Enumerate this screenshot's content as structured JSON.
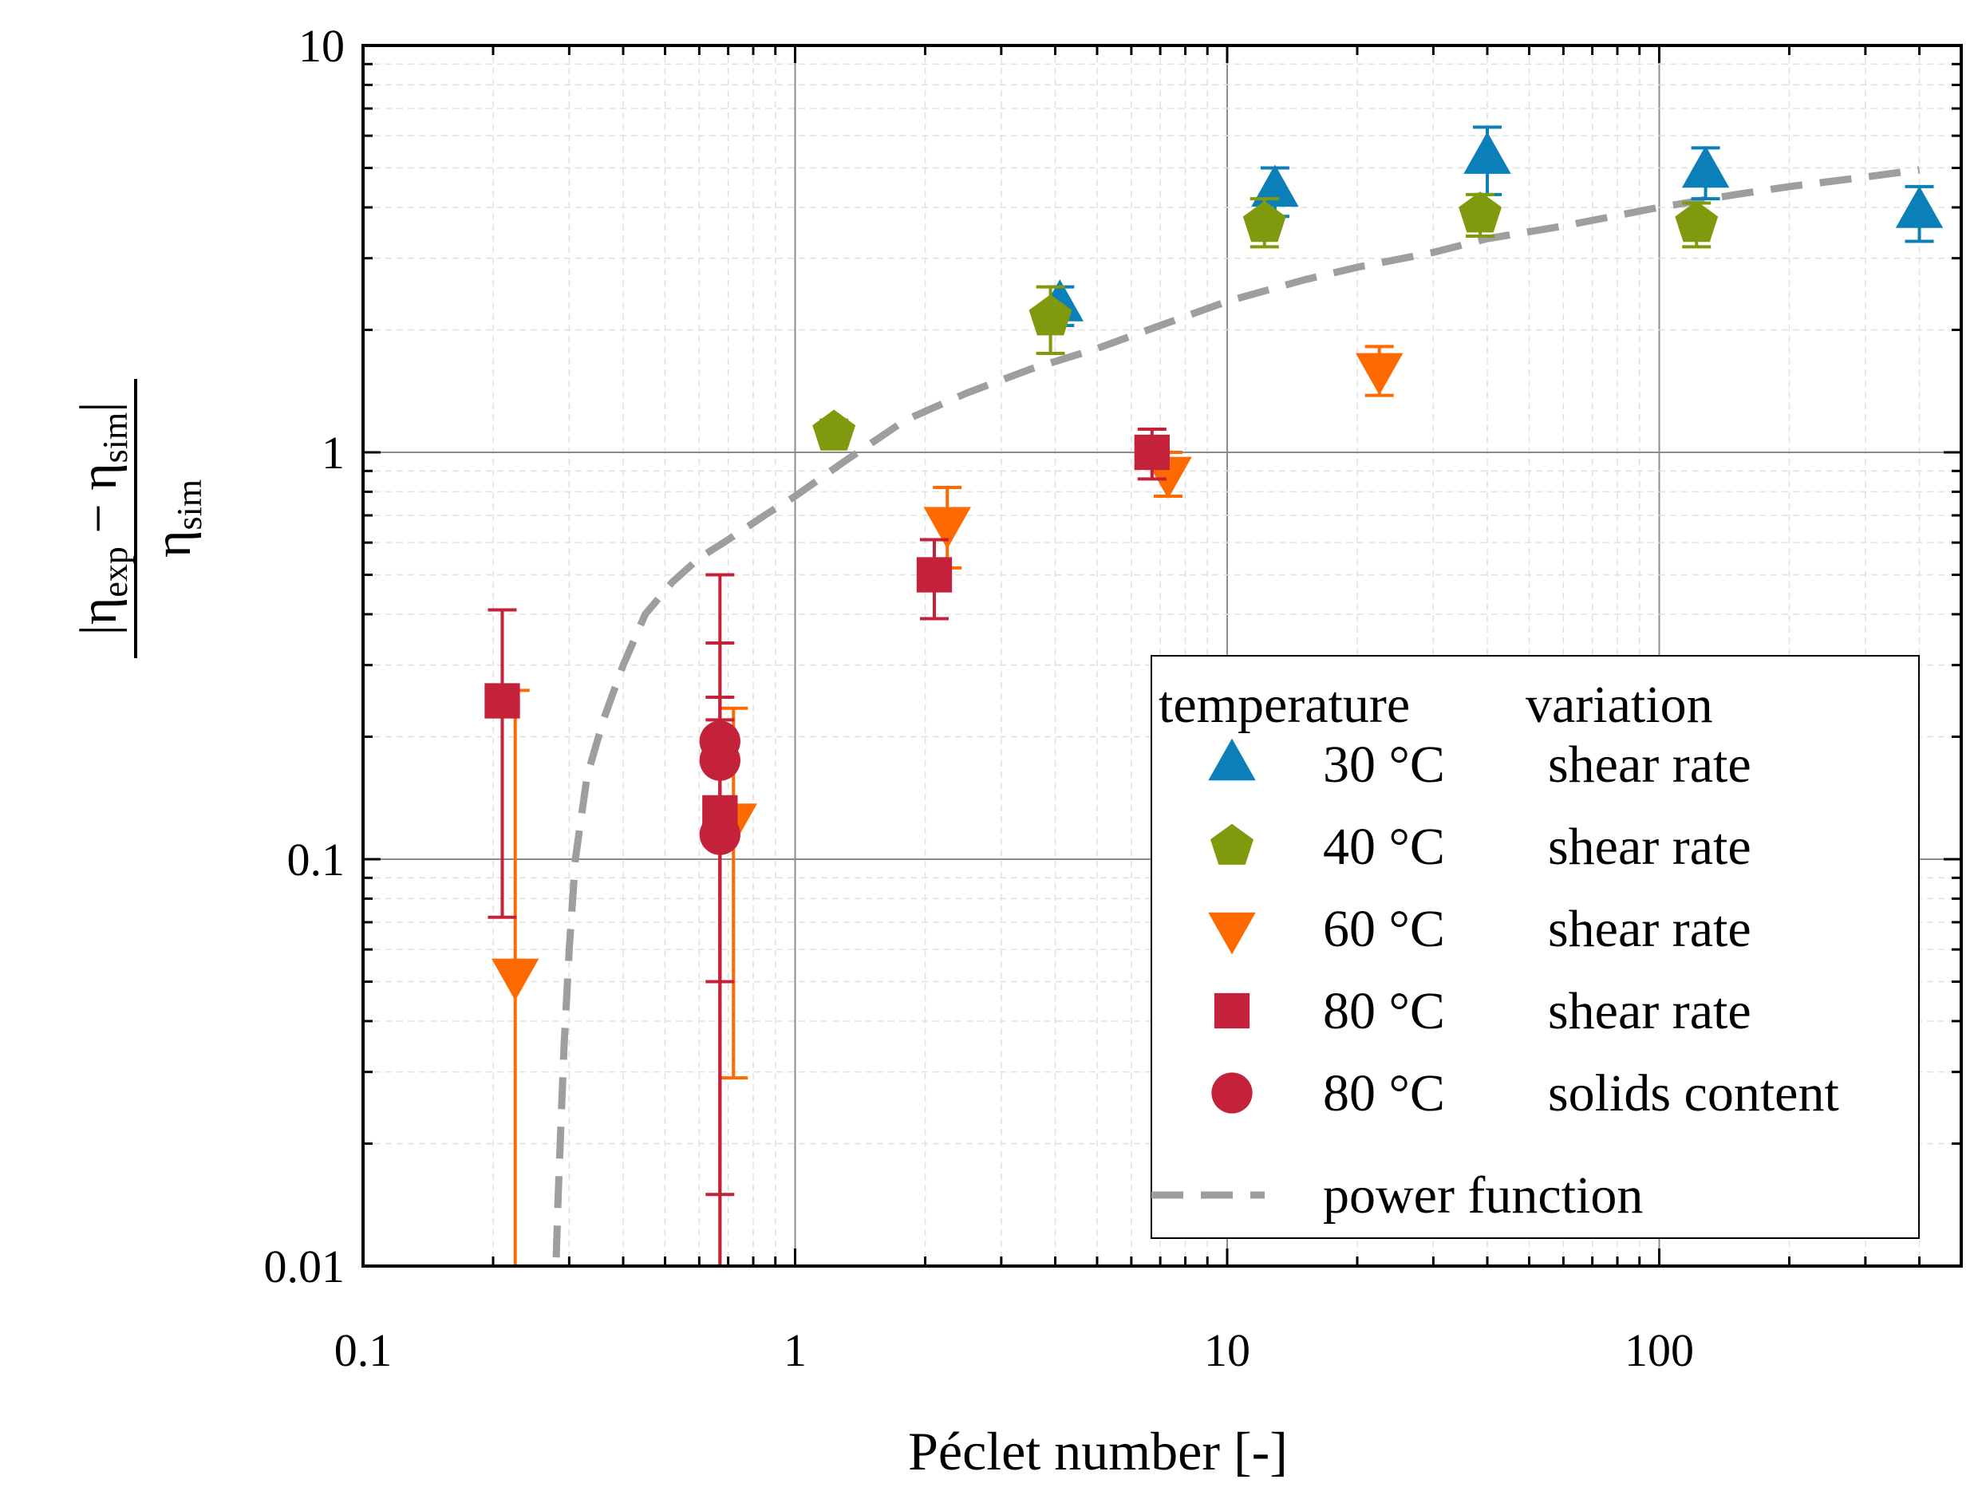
{
  "chart_data": {
    "type": "scatter",
    "xscale": "log",
    "yscale": "log",
    "xlim": [
      0.1,
      500
    ],
    "ylim": [
      0.01,
      10
    ],
    "xlabel": "Péclet number [-]",
    "ylabel": {
      "numerator_open": "|η",
      "numerator_sub1": "exp",
      "numerator_mid": " − η",
      "numerator_sub2": "sim",
      "numerator_close": "|",
      "denominator": "η",
      "denominator_sub": "sim"
    },
    "x_ticks": [
      {
        "value": 0.1,
        "label": "0.1"
      },
      {
        "value": 1,
        "label": "1"
      },
      {
        "value": 10,
        "label": "10"
      },
      {
        "value": 100,
        "label": "100"
      }
    ],
    "y_ticks": [
      {
        "value": 0.01,
        "label": "0.01"
      },
      {
        "value": 0.1,
        "label": "0.1"
      },
      {
        "value": 1,
        "label": "1"
      },
      {
        "value": 10,
        "label": "10"
      }
    ],
    "grid": true,
    "legend": {
      "placement": "bottom-right",
      "header_left": "temperature",
      "header_right": "variation"
    },
    "series": [
      {
        "name": "30 °C",
        "variation": "shear rate",
        "marker": "triangle-up",
        "color": "#0a7fb8",
        "points": [
          {
            "x": 4.1,
            "y": 2.3,
            "lo": 2.05,
            "hi": 2.55
          },
          {
            "x": 12.9,
            "y": 4.4,
            "lo": 3.8,
            "hi": 5.0
          },
          {
            "x": 40,
            "y": 5.3,
            "lo": 4.3,
            "hi": 6.3
          },
          {
            "x": 128,
            "y": 4.9,
            "lo": 4.2,
            "hi": 5.6
          },
          {
            "x": 400,
            "y": 3.9,
            "lo": 3.3,
            "hi": 4.5
          }
        ]
      },
      {
        "name": "40 °C",
        "variation": "shear rate",
        "marker": "pentagon",
        "color": "#7f9a0c",
        "points": [
          {
            "x": 1.23,
            "y": 1.12,
            "lo": 1.05,
            "hi": 1.2
          },
          {
            "x": 3.9,
            "y": 2.15,
            "lo": 1.75,
            "hi": 2.55
          },
          {
            "x": 12.2,
            "y": 3.65,
            "lo": 3.2,
            "hi": 4.2
          },
          {
            "x": 38.5,
            "y": 3.85,
            "lo": 3.4,
            "hi": 4.3
          },
          {
            "x": 122,
            "y": 3.65,
            "lo": 3.2,
            "hi": 4.1
          }
        ]
      },
      {
        "name": "60 °C",
        "variation": "shear rate",
        "marker": "triangle-down",
        "color": "#ff6a00",
        "points": [
          {
            "x": 0.225,
            "y": 0.052,
            "lo": 0.01,
            "hi": 0.26
          },
          {
            "x": 0.72,
            "y": 0.125,
            "lo": 0.029,
            "hi": 0.235
          },
          {
            "x": 2.25,
            "y": 0.67,
            "lo": 0.52,
            "hi": 0.82
          },
          {
            "x": 7.3,
            "y": 0.89,
            "lo": 0.78,
            "hi": 1.0
          },
          {
            "x": 22.5,
            "y": 1.6,
            "lo": 1.38,
            "hi": 1.82
          }
        ]
      },
      {
        "name": "80 °C",
        "variation": "shear rate",
        "marker": "square",
        "color": "#c4213a",
        "points": [
          {
            "x": 0.21,
            "y": 0.245,
            "lo": 0.072,
            "hi": 0.41
          },
          {
            "x": 0.67,
            "y": 0.13,
            "lo": 0.015,
            "hi": 0.5
          },
          {
            "x": 2.1,
            "y": 0.5,
            "lo": 0.39,
            "hi": 0.61
          },
          {
            "x": 6.7,
            "y": 1.0,
            "lo": 0.86,
            "hi": 1.14
          }
        ]
      },
      {
        "name": "80 °C",
        "variation": "solids content",
        "marker": "circle",
        "color": "#c4213a",
        "points": [
          {
            "x": 0.67,
            "y": 0.195,
            "lo": 0.05,
            "hi": 0.34
          },
          {
            "x": 0.67,
            "y": 0.175,
            "lo": 0.01,
            "hi": 0.25
          },
          {
            "x": 0.67,
            "y": 0.115,
            "lo": 0.01,
            "hi": 0.22
          }
        ]
      }
    ],
    "fit": {
      "name": "power function",
      "color": "#9e9e9e",
      "x": [
        0.28,
        0.283,
        0.287,
        0.292,
        0.3,
        0.31,
        0.33,
        0.36,
        0.4,
        0.45,
        0.52,
        0.6,
        0.7,
        0.85,
        1.0,
        1.3,
        1.8,
        2.5,
        3.5,
        5,
        7,
        10,
        15,
        20,
        30,
        40,
        60,
        100,
        150,
        200,
        300,
        400
      ],
      "y": [
        0.0105,
        0.015,
        0.022,
        0.035,
        0.06,
        0.1,
        0.16,
        0.22,
        0.3,
        0.4,
        0.48,
        0.55,
        0.61,
        0.7,
        0.78,
        0.95,
        1.2,
        1.4,
        1.6,
        1.8,
        2.05,
        2.35,
        2.65,
        2.85,
        3.1,
        3.35,
        3.6,
        4.0,
        4.3,
        4.5,
        4.75,
        4.95
      ]
    }
  }
}
